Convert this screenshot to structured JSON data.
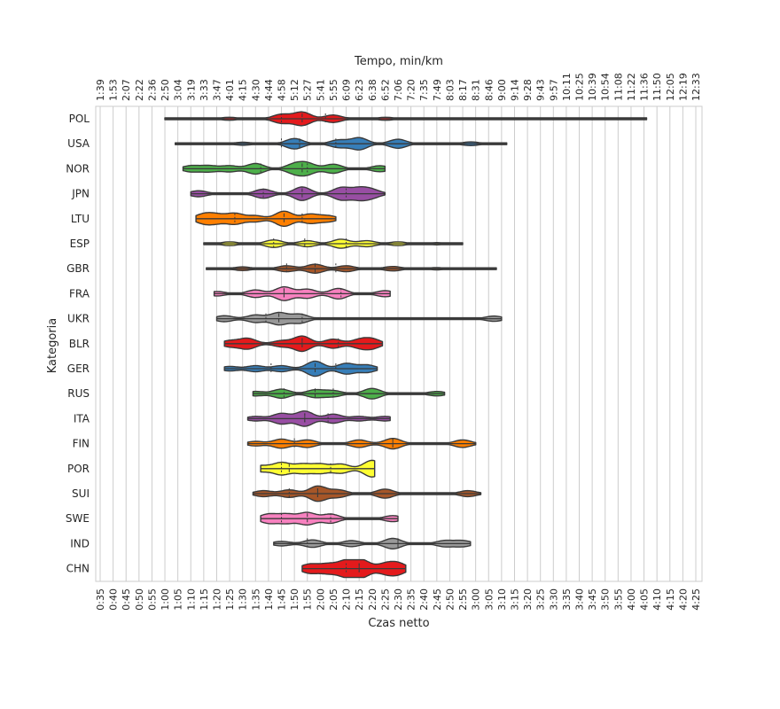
{
  "chart_data": {
    "type": "violin",
    "xlabel": "Czas netto",
    "ylabel": "Kategoria",
    "top_xlabel": "Tempo, min/km",
    "grid": true,
    "xlim": [
      "0:35",
      "4:25"
    ],
    "x_ticks": [
      "0:35",
      "0:40",
      "0:45",
      "0:50",
      "0:55",
      "1:00",
      "1:05",
      "1:10",
      "1:15",
      "1:20",
      "1:25",
      "1:30",
      "1:35",
      "1:40",
      "1:45",
      "1:50",
      "1:55",
      "2:00",
      "2:05",
      "2:10",
      "2:15",
      "2:20",
      "2:25",
      "2:30",
      "2:35",
      "2:40",
      "2:45",
      "2:50",
      "2:55",
      "3:00",
      "3:05",
      "3:10",
      "3:15",
      "3:20",
      "3:25",
      "3:30",
      "3:35",
      "3:40",
      "3:45",
      "3:50",
      "3:55",
      "4:00",
      "4:05",
      "4:10",
      "4:15",
      "4:20",
      "4:25"
    ],
    "top_ticks": [
      "1:39",
      "1:53",
      "2:07",
      "2:22",
      "2:36",
      "2:50",
      "3:04",
      "3:19",
      "3:33",
      "3:47",
      "4:01",
      "4:15",
      "4:30",
      "4:44",
      "4:58",
      "5:12",
      "5:27",
      "5:41",
      "5:55",
      "6:09",
      "6:23",
      "6:38",
      "6:52",
      "7:06",
      "7:20",
      "7:35",
      "7:49",
      "8:03",
      "8:17",
      "8:31",
      "8:46",
      "9:00",
      "9:14",
      "9:28",
      "9:43",
      "9:57",
      "10:11",
      "10:25",
      "10:39",
      "10:54",
      "11:08",
      "11:22",
      "11:36",
      "11:50",
      "12:05",
      "12:19",
      "12:33"
    ],
    "categories": [
      "POL",
      "USA",
      "NOR",
      "JPN",
      "LTU",
      "ESP",
      "GBR",
      "FRA",
      "UKR",
      "BLR",
      "GER",
      "RUS",
      "ITA",
      "FIN",
      "POR",
      "SUI",
      "SWE",
      "IND",
      "CHN"
    ],
    "colors": [
      "#e41a1c",
      "#377eb8",
      "#4daf4a",
      "#984ea3",
      "#ff7f00",
      "#ffff33",
      "#a65628",
      "#f781bf",
      "#999999"
    ],
    "series": [
      {
        "name": "POL",
        "min": "1:00",
        "max": "4:06",
        "median": "1:53",
        "q1": "1:45",
        "q3": "2:02",
        "modes": [
          [
            "1:25",
            0.2
          ],
          [
            "1:45",
            0.6
          ],
          [
            "1:53",
            0.9
          ],
          [
            "2:05",
            0.5
          ],
          [
            "2:25",
            0.2
          ]
        ]
      },
      {
        "name": "USA",
        "min": "1:04",
        "max": "3:12",
        "median": "1:52",
        "q1": "1:45",
        "q3": "2:06",
        "modes": [
          [
            "1:30",
            0.2
          ],
          [
            "1:50",
            0.7
          ],
          [
            "2:07",
            0.5
          ],
          [
            "2:15",
            0.8
          ],
          [
            "2:30",
            0.6
          ],
          [
            "2:58",
            0.25
          ]
        ]
      },
      {
        "name": "NOR",
        "min": "1:07",
        "max": "2:25",
        "median": "1:53",
        "q1": "1:37",
        "q3": "1:55",
        "modes": [
          [
            "1:10",
            0.4
          ],
          [
            "1:17",
            0.4
          ],
          [
            "1:25",
            0.4
          ],
          [
            "1:35",
            0.7
          ],
          [
            "1:50",
            0.6
          ],
          [
            "1:55",
            0.7
          ],
          [
            "2:05",
            0.6
          ],
          [
            "2:23",
            0.4
          ]
        ]
      },
      {
        "name": "JPN",
        "min": "1:10",
        "max": "2:25",
        "median": "1:53",
        "q1": "1:38",
        "q3": "2:10",
        "modes": [
          [
            "1:13",
            0.4
          ],
          [
            "1:38",
            0.6
          ],
          [
            "1:53",
            0.9
          ],
          [
            "2:08",
            0.8
          ],
          [
            "2:15",
            0.7
          ],
          [
            "2:20",
            0.5
          ]
        ]
      },
      {
        "name": "LTU",
        "min": "1:12",
        "max": "2:06",
        "median": "1:46",
        "q1": "1:27",
        "q3": "1:53",
        "modes": [
          [
            "1:15",
            0.6
          ],
          [
            "1:20",
            0.5
          ],
          [
            "1:27",
            0.7
          ],
          [
            "1:35",
            0.4
          ],
          [
            "1:46",
            1.0
          ],
          [
            "1:56",
            0.6
          ],
          [
            "2:03",
            0.4
          ]
        ]
      },
      {
        "name": "ESP",
        "min": "1:15",
        "max": "2:55",
        "median": "1:54",
        "q1": "1:42",
        "q3": "2:10",
        "modes": [
          [
            "1:25",
            0.25
          ],
          [
            "1:42",
            0.5
          ],
          [
            "1:55",
            0.4
          ],
          [
            "2:08",
            0.6
          ],
          [
            "2:18",
            0.4
          ],
          [
            "2:30",
            0.25
          ],
          [
            "2:45",
            0.15
          ]
        ]
      },
      {
        "name": "GBR",
        "min": "1:16",
        "max": "3:08",
        "median": "1:58",
        "q1": "1:47",
        "q3": "2:06",
        "modes": [
          [
            "1:30",
            0.25
          ],
          [
            "1:47",
            0.4
          ],
          [
            "1:58",
            0.6
          ],
          [
            "2:10",
            0.4
          ],
          [
            "2:28",
            0.3
          ],
          [
            "2:45",
            0.15
          ]
        ]
      },
      {
        "name": "FRA",
        "min": "1:19",
        "max": "2:27",
        "median": "1:46",
        "q1": "1:46",
        "q3": "2:08",
        "modes": [
          [
            "1:20",
            0.3
          ],
          [
            "1:35",
            0.5
          ],
          [
            "1:46",
            0.9
          ],
          [
            "1:55",
            0.6
          ],
          [
            "2:07",
            0.7
          ],
          [
            "2:25",
            0.4
          ]
        ]
      },
      {
        "name": "UKR",
        "min": "1:20",
        "max": "3:10",
        "median": "1:44",
        "q1": "1:39",
        "q3": "1:53",
        "modes": [
          [
            "1:23",
            0.4
          ],
          [
            "1:35",
            0.5
          ],
          [
            "1:44",
            0.8
          ],
          [
            "1:52",
            0.6
          ],
          [
            "3:07",
            0.35
          ]
        ]
      },
      {
        "name": "BLR",
        "min": "1:23",
        "max": "2:24",
        "median": "1:53",
        "q1": "1:53",
        "q3": "2:07",
        "modes": [
          [
            "1:25",
            0.4
          ],
          [
            "1:32",
            0.7
          ],
          [
            "1:45",
            0.4
          ],
          [
            "1:53",
            1.0
          ],
          [
            "2:05",
            0.6
          ],
          [
            "2:15",
            0.5
          ],
          [
            "2:20",
            0.6
          ]
        ]
      },
      {
        "name": "GER",
        "min": "1:23",
        "max": "2:22",
        "median": "1:58",
        "q1": "1:41",
        "q3": "2:06",
        "modes": [
          [
            "1:25",
            0.3
          ],
          [
            "1:35",
            0.4
          ],
          [
            "1:45",
            0.4
          ],
          [
            "1:58",
            1.0
          ],
          [
            "2:10",
            0.7
          ],
          [
            "2:18",
            0.5
          ]
        ]
      },
      {
        "name": "RUS",
        "min": "1:34",
        "max": "2:48",
        "median": "1:58",
        "q1": "1:46",
        "q3": "2:05",
        "modes": [
          [
            "1:35",
            0.3
          ],
          [
            "1:45",
            0.6
          ],
          [
            "1:58",
            0.5
          ],
          [
            "2:05",
            0.4
          ],
          [
            "2:20",
            0.7
          ],
          [
            "2:45",
            0.3
          ]
        ]
      },
      {
        "name": "ITA",
        "min": "1:32",
        "max": "2:27",
        "median": "1:54",
        "q1": "1:54",
        "q3": "2:03",
        "modes": [
          [
            "1:35",
            0.3
          ],
          [
            "1:45",
            0.7
          ],
          [
            "1:54",
            1.0
          ],
          [
            "2:05",
            0.6
          ],
          [
            "2:15",
            0.3
          ],
          [
            "2:25",
            0.3
          ]
        ]
      },
      {
        "name": "FIN",
        "min": "1:32",
        "max": "3:00",
        "median": "2:28",
        "q1": "1:50",
        "q3": "2:28",
        "modes": [
          [
            "1:35",
            0.3
          ],
          [
            "1:45",
            0.6
          ],
          [
            "1:55",
            0.5
          ],
          [
            "2:15",
            0.5
          ],
          [
            "2:28",
            0.7
          ],
          [
            "2:55",
            0.5
          ]
        ]
      },
      {
        "name": "POR",
        "min": "1:37",
        "max": "2:21",
        "median": "1:48",
        "q1": "1:45",
        "q3": "2:04",
        "modes": [
          [
            "1:37",
            0.4
          ],
          [
            "1:45",
            0.8
          ],
          [
            "1:53",
            0.6
          ],
          [
            "2:00",
            0.6
          ],
          [
            "2:08",
            0.6
          ],
          [
            "2:20",
            1.1
          ]
        ]
      },
      {
        "name": "SUI",
        "min": "1:34",
        "max": "3:02",
        "median": "1:59",
        "q1": "1:48",
        "q3": "1:59",
        "modes": [
          [
            "1:38",
            0.4
          ],
          [
            "1:48",
            0.5
          ],
          [
            "1:59",
            1.0
          ],
          [
            "2:07",
            0.5
          ],
          [
            "2:25",
            0.6
          ],
          [
            "2:57",
            0.4
          ]
        ]
      },
      {
        "name": "SWE",
        "min": "1:37",
        "max": "2:30",
        "median": "1:55",
        "q1": "1:45",
        "q3": "2:04",
        "modes": [
          [
            "1:40",
            0.6
          ],
          [
            "1:47",
            0.6
          ],
          [
            "1:55",
            0.8
          ],
          [
            "2:04",
            0.6
          ],
          [
            "2:28",
            0.4
          ]
        ]
      },
      {
        "name": "IND",
        "min": "1:42",
        "max": "2:58",
        "median": "2:30",
        "q1": "1:55",
        "q3": "2:30",
        "modes": [
          [
            "1:45",
            0.3
          ],
          [
            "1:57",
            0.5
          ],
          [
            "2:12",
            0.4
          ],
          [
            "2:28",
            0.7
          ],
          [
            "2:48",
            0.4
          ],
          [
            "2:55",
            0.4
          ]
        ]
      },
      {
        "name": "CHN",
        "min": "1:53",
        "max": "2:33",
        "median": "2:15",
        "q1": "2:10",
        "q3": "2:15",
        "modes": [
          [
            "1:56",
            0.6
          ],
          [
            "2:03",
            0.6
          ],
          [
            "2:10",
            1.0
          ],
          [
            "2:16",
            1.1
          ],
          [
            "2:25",
            0.6
          ],
          [
            "2:30",
            0.7
          ]
        ]
      }
    ]
  }
}
